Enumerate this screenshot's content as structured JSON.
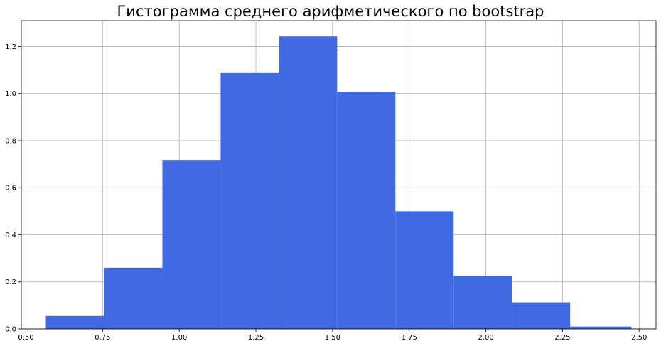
{
  "chart_data": {
    "type": "bar",
    "title": "Гистограмма среднего арифметического по bootstrap",
    "xlabel": "",
    "ylabel": "",
    "bin_edges": [
      0.565,
      0.755,
      0.945,
      1.135,
      1.325,
      1.515,
      1.705,
      1.895,
      2.085,
      2.275,
      2.475
    ],
    "values": [
      0.055,
      0.26,
      0.718,
      1.087,
      1.243,
      1.008,
      0.5,
      0.225,
      0.113,
      0.01
    ],
    "xlim": [
      0.485,
      2.555
    ],
    "ylim": [
      0,
      1.31
    ],
    "xticks": [
      0.5,
      0.75,
      1.0,
      1.25,
      1.5,
      1.75,
      2.0,
      2.25,
      2.5
    ],
    "xtick_labels": [
      "0.50",
      "0.75",
      "1.00",
      "1.25",
      "1.50",
      "1.75",
      "2.00",
      "2.25",
      "2.50"
    ],
    "yticks": [
      0.0,
      0.2,
      0.4,
      0.6,
      0.8,
      1.0,
      1.2
    ],
    "ytick_labels": [
      "0.0",
      "0.2",
      "0.4",
      "0.6",
      "0.8",
      "1.0",
      "1.2"
    ],
    "grid": true,
    "bar_color": "#4169e1",
    "grid_color": "#b0b0b0",
    "axis_color": "#000000"
  }
}
